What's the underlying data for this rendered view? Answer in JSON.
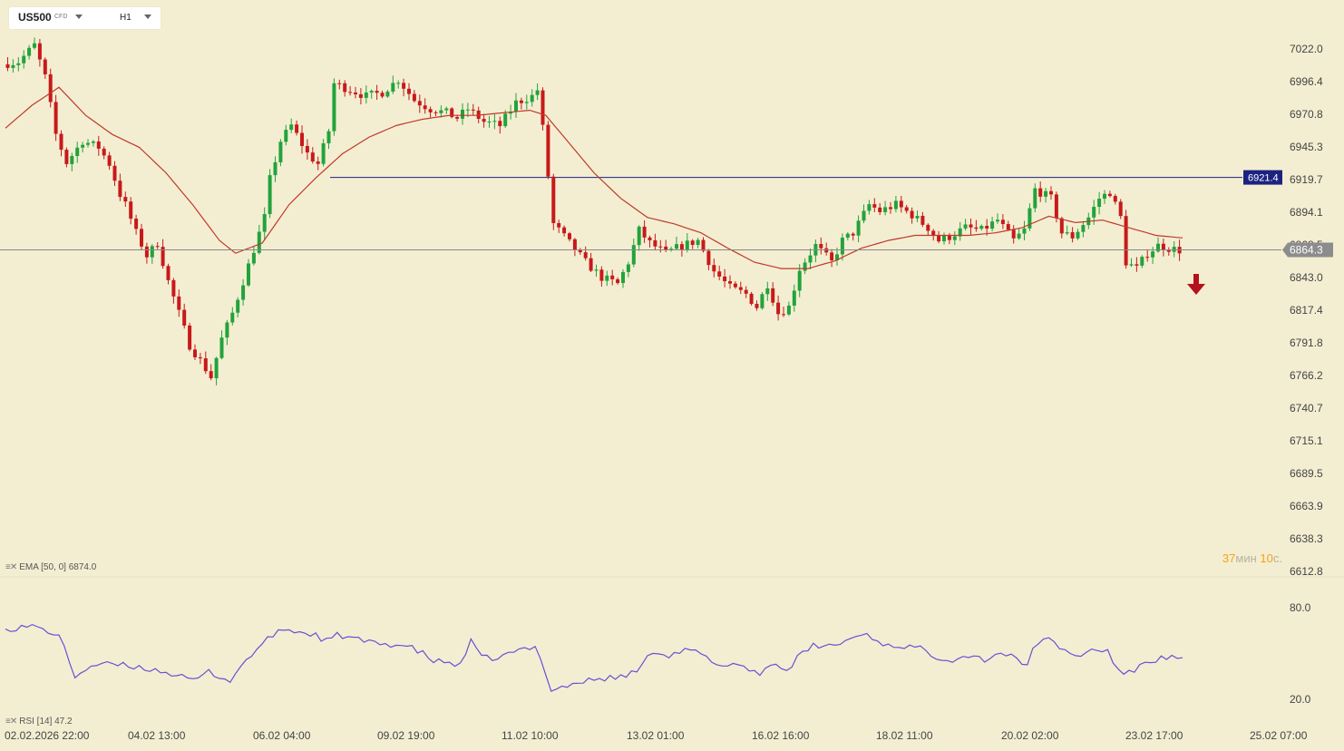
{
  "toolbar": {
    "symbol": "US500",
    "symbol_type": "CFD",
    "timeframe": "H1"
  },
  "price_axis_labels": [
    "7022.0",
    "6996.4",
    "6970.8",
    "6945.3",
    "6919.7",
    "6894.1",
    "6868.5",
    "6843.0",
    "6817.4",
    "6791.8",
    "6766.2",
    "6740.7",
    "6715.1",
    "6689.5",
    "6663.9",
    "6638.3",
    "6612.8"
  ],
  "rsi_axis_labels": [
    "80.0",
    "20.0"
  ],
  "time_labels": [
    "02.02.2026  22:00",
    "04.02  13:00",
    "06.02  04:00",
    "09.02  19:00",
    "11.02  10:00",
    "13.02  01:00",
    "16.02  16:00",
    "18.02  11:00",
    "20.02  02:00",
    "23.02  17:00",
    "25.02  07:00"
  ],
  "ema_label": "EMA [50, 0] 6874.0",
  "rsi_label": "RSI [14] 47.2",
  "horizontal_line_label": "6921.4",
  "current_price_label": "6864.3",
  "timer": {
    "minutes": "37",
    "minutes_unit": "мин",
    "seconds": "10",
    "seconds_unit": "с."
  },
  "colors": {
    "background": "#f3eed2",
    "bull": "#22a33b",
    "bear": "#c8191a",
    "ema": "#c0392b",
    "rsi": "#6a4fd3",
    "level_line": "#1b2280",
    "price_line": "#888888",
    "signal_arrow": "#b5121b"
  },
  "chart_data": {
    "type": "candlestick",
    "symbol": "US500",
    "timeframe": "H1",
    "ylim": [
      6612.8,
      7022.0
    ],
    "rsi_ylim": [
      20,
      80
    ],
    "horizontal_level": 6921.4,
    "current_price": 6864.3,
    "ema": {
      "period": 50,
      "last_value": 6874.0
    },
    "rsi": {
      "period": 14,
      "last_value": 47.2
    },
    "price_path": [
      [
        0,
        7010
      ],
      [
        3,
        7012
      ],
      [
        6,
        7025
      ],
      [
        8,
        7000
      ],
      [
        10,
        6955
      ],
      [
        12,
        6933
      ],
      [
        15,
        6950
      ],
      [
        18,
        6945
      ],
      [
        20,
        6932
      ],
      [
        22,
        6908
      ],
      [
        23,
        6900
      ],
      [
        25,
        6878
      ],
      [
        27,
        6860
      ],
      [
        29,
        6870
      ],
      [
        31,
        6840
      ],
      [
        33,
        6815
      ],
      [
        35,
        6790
      ],
      [
        37,
        6778
      ],
      [
        39,
        6765
      ],
      [
        41,
        6795
      ],
      [
        43,
        6815
      ],
      [
        45,
        6840
      ],
      [
        47,
        6865
      ],
      [
        49,
        6890
      ],
      [
        50,
        6920
      ],
      [
        52,
        6950
      ],
      [
        54,
        6962
      ],
      [
        57,
        6940
      ],
      [
        59,
        6932
      ],
      [
        61,
        6958
      ],
      [
        62,
        6995
      ],
      [
        65,
        6990
      ],
      [
        68,
        6985
      ],
      [
        71,
        6988
      ],
      [
        74,
        6998
      ],
      [
        77,
        6982
      ],
      [
        80,
        6975
      ],
      [
        83,
        6972
      ],
      [
        85,
        6968
      ],
      [
        87,
        6975
      ],
      [
        90,
        6965
      ],
      [
        93,
        6962
      ],
      [
        96,
        6980
      ],
      [
        99,
        6985
      ],
      [
        100,
        6990
      ],
      [
        101,
        6960
      ],
      [
        103,
        6885
      ],
      [
        106,
        6870
      ],
      [
        109,
        6855
      ],
      [
        112,
        6843
      ],
      [
        115,
        6838
      ],
      [
        117,
        6855
      ],
      [
        119,
        6880
      ],
      [
        121,
        6870
      ],
      [
        124,
        6862
      ],
      [
        127,
        6868
      ],
      [
        130,
        6872
      ],
      [
        133,
        6848
      ],
      [
        136,
        6835
      ],
      [
        139,
        6830
      ],
      [
        141,
        6820
      ],
      [
        143,
        6838
      ],
      [
        145,
        6815
      ],
      [
        147,
        6820
      ],
      [
        149,
        6850
      ],
      [
        152,
        6868
      ],
      [
        155,
        6855
      ],
      [
        157,
        6872
      ],
      [
        159,
        6878
      ],
      [
        162,
        6900
      ],
      [
        164,
        6895
      ],
      [
        167,
        6900
      ],
      [
        170,
        6892
      ],
      [
        173,
        6882
      ],
      [
        175,
        6872
      ],
      [
        177,
        6875
      ],
      [
        180,
        6882
      ],
      [
        183,
        6880
      ],
      [
        186,
        6888
      ],
      [
        189,
        6872
      ],
      [
        191,
        6880
      ],
      [
        193,
        6912
      ],
      [
        196,
        6905
      ],
      [
        198,
        6878
      ],
      [
        200,
        6875
      ],
      [
        203,
        6890
      ],
      [
        205,
        6905
      ],
      [
        207,
        6910
      ],
      [
        209,
        6890
      ],
      [
        210,
        6855
      ],
      [
        212,
        6850
      ],
      [
        214,
        6862
      ],
      [
        216,
        6868
      ],
      [
        218,
        6866
      ],
      [
        220,
        6864.3
      ]
    ],
    "ema_path": [
      [
        0,
        6960
      ],
      [
        5,
        6978
      ],
      [
        10,
        6992
      ],
      [
        15,
        6970
      ],
      [
        20,
        6955
      ],
      [
        25,
        6945
      ],
      [
        30,
        6925
      ],
      [
        35,
        6900
      ],
      [
        40,
        6872
      ],
      [
        43,
        6862
      ],
      [
        48,
        6870
      ],
      [
        53,
        6900
      ],
      [
        58,
        6921
      ],
      [
        63,
        6940
      ],
      [
        68,
        6953
      ],
      [
        73,
        6962
      ],
      [
        78,
        6967
      ],
      [
        83,
        6970
      ],
      [
        88,
        6970
      ],
      [
        93,
        6972
      ],
      [
        98,
        6974
      ],
      [
        101,
        6970
      ],
      [
        105,
        6950
      ],
      [
        110,
        6925
      ],
      [
        115,
        6905
      ],
      [
        120,
        6890
      ],
      [
        125,
        6885
      ],
      [
        130,
        6878
      ],
      [
        135,
        6866
      ],
      [
        140,
        6855
      ],
      [
        145,
        6850
      ],
      [
        150,
        6850
      ],
      [
        155,
        6856
      ],
      [
        160,
        6866
      ],
      [
        165,
        6872
      ],
      [
        170,
        6876
      ],
      [
        175,
        6876
      ],
      [
        180,
        6876
      ],
      [
        185,
        6878
      ],
      [
        190,
        6882
      ],
      [
        195,
        6891
      ],
      [
        200,
        6886
      ],
      [
        205,
        6888
      ],
      [
        210,
        6882
      ],
      [
        215,
        6876
      ],
      [
        220,
        6874
      ]
    ],
    "rsi_path": [
      [
        0,
        66
      ],
      [
        5,
        68
      ],
      [
        10,
        62
      ],
      [
        13,
        35
      ],
      [
        16,
        42
      ],
      [
        20,
        43
      ],
      [
        25,
        41
      ],
      [
        30,
        38
      ],
      [
        35,
        32
      ],
      [
        38,
        38
      ],
      [
        42,
        32
      ],
      [
        45,
        46
      ],
      [
        48,
        56
      ],
      [
        50,
        62
      ],
      [
        52,
        66
      ],
      [
        55,
        64
      ],
      [
        58,
        62
      ],
      [
        60,
        58
      ],
      [
        62,
        62
      ],
      [
        65,
        60
      ],
      [
        68,
        57
      ],
      [
        72,
        56
      ],
      [
        75,
        55
      ],
      [
        78,
        50
      ],
      [
        80,
        45
      ],
      [
        83,
        44
      ],
      [
        85,
        42
      ],
      [
        87,
        58
      ],
      [
        89,
        47
      ],
      [
        92,
        47
      ],
      [
        96,
        52
      ],
      [
        99,
        54
      ],
      [
        100,
        48
      ],
      [
        102,
        26
      ],
      [
        106,
        30
      ],
      [
        110,
        33
      ],
      [
        113,
        34
      ],
      [
        116,
        35
      ],
      [
        119,
        42
      ],
      [
        121,
        52
      ],
      [
        124,
        49
      ],
      [
        127,
        52
      ],
      [
        130,
        50
      ],
      [
        133,
        41
      ],
      [
        136,
        44
      ],
      [
        139,
        40
      ],
      [
        141,
        36
      ],
      [
        143,
        44
      ],
      [
        146,
        39
      ],
      [
        148,
        47
      ],
      [
        151,
        55
      ],
      [
        155,
        55
      ],
      [
        158,
        60
      ],
      [
        161,
        63
      ],
      [
        163,
        58
      ],
      [
        165,
        55
      ],
      [
        168,
        55
      ],
      [
        171,
        53
      ],
      [
        174,
        48
      ],
      [
        177,
        46
      ],
      [
        180,
        49
      ],
      [
        183,
        46
      ],
      [
        186,
        51
      ],
      [
        189,
        46
      ],
      [
        191,
        42
      ],
      [
        192,
        55
      ],
      [
        195,
        59
      ],
      [
        198,
        52
      ],
      [
        200,
        48
      ],
      [
        203,
        52
      ],
      [
        206,
        52
      ],
      [
        208,
        38
      ],
      [
        210,
        37
      ],
      [
        213,
        44
      ],
      [
        216,
        47
      ],
      [
        218,
        47
      ],
      [
        220,
        47.2
      ]
    ]
  }
}
